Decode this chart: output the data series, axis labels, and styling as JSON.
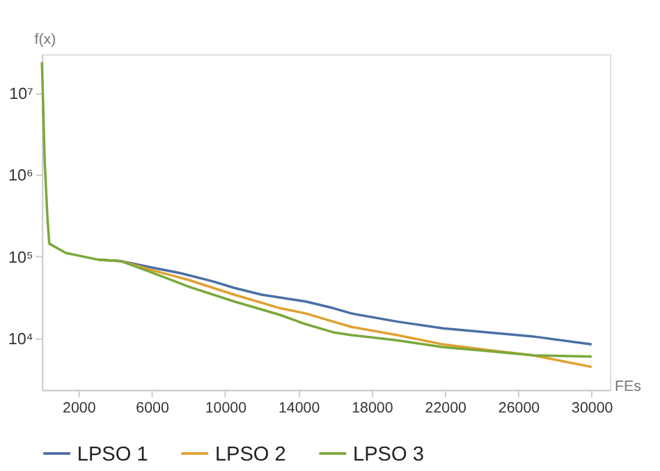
{
  "chart_data": {
    "type": "line",
    "xlabel": "FEs",
    "ylabel": "f(x)",
    "log": "y",
    "grid": false,
    "legend": "bottom",
    "line_style": "solid",
    "marker": "none",
    "xlim": [
      0,
      31000
    ],
    "xticks": [
      2000,
      6000,
      10000,
      14000,
      18000,
      22000,
      26000,
      30000
    ],
    "ylim": [
      2300,
      30000000
    ],
    "yticks": [
      {
        "value": 10000,
        "label": "10⁴"
      },
      {
        "value": 100000,
        "label": "10⁵"
      },
      {
        "value": 1000000,
        "label": "10⁶"
      },
      {
        "value": 10000000,
        "label": "10⁷"
      }
    ],
    "series": [
      {
        "name": "LPSO 1",
        "color": "#4a6fa5",
        "x": [
          3100,
          4300,
          6100,
          7600,
          9300,
          10500,
          12000,
          14400,
          15900,
          16900,
          19400,
          21900,
          24300,
          26800,
          30000
        ],
        "values": [
          90600,
          87300,
          72100,
          61900,
          49400,
          40900,
          33800,
          27900,
          23100,
          19900,
          15800,
          13100,
          11700,
          10400,
          8300
        ]
      },
      {
        "name": "LPSO 2",
        "color": "#e0a030",
        "x": [
          3100,
          4300,
          6100,
          8000,
          10500,
          13000,
          14400,
          15900,
          16900,
          19400,
          21900,
          24300,
          26800,
          30000
        ],
        "values": [
          90600,
          87300,
          66800,
          51300,
          33800,
          23100,
          19900,
          15800,
          13600,
          10800,
          8300,
          7100,
          6100,
          4400
        ]
      },
      {
        "name": "LPSO 3",
        "color": "#7aa83a",
        "x": [
          0,
          150,
          300,
          400,
          1300,
          3100,
          4300,
          6100,
          8000,
          10500,
          13000,
          14400,
          15900,
          16900,
          19400,
          21900,
          24300,
          26800,
          30000
        ],
        "values": [
          24000000,
          1500000,
          300000,
          143000,
          110000,
          90600,
          87300,
          61900,
          42500,
          27900,
          19100,
          14700,
          11700,
          10800,
          9300,
          7700,
          6900,
          6100,
          5900
        ]
      }
    ]
  }
}
